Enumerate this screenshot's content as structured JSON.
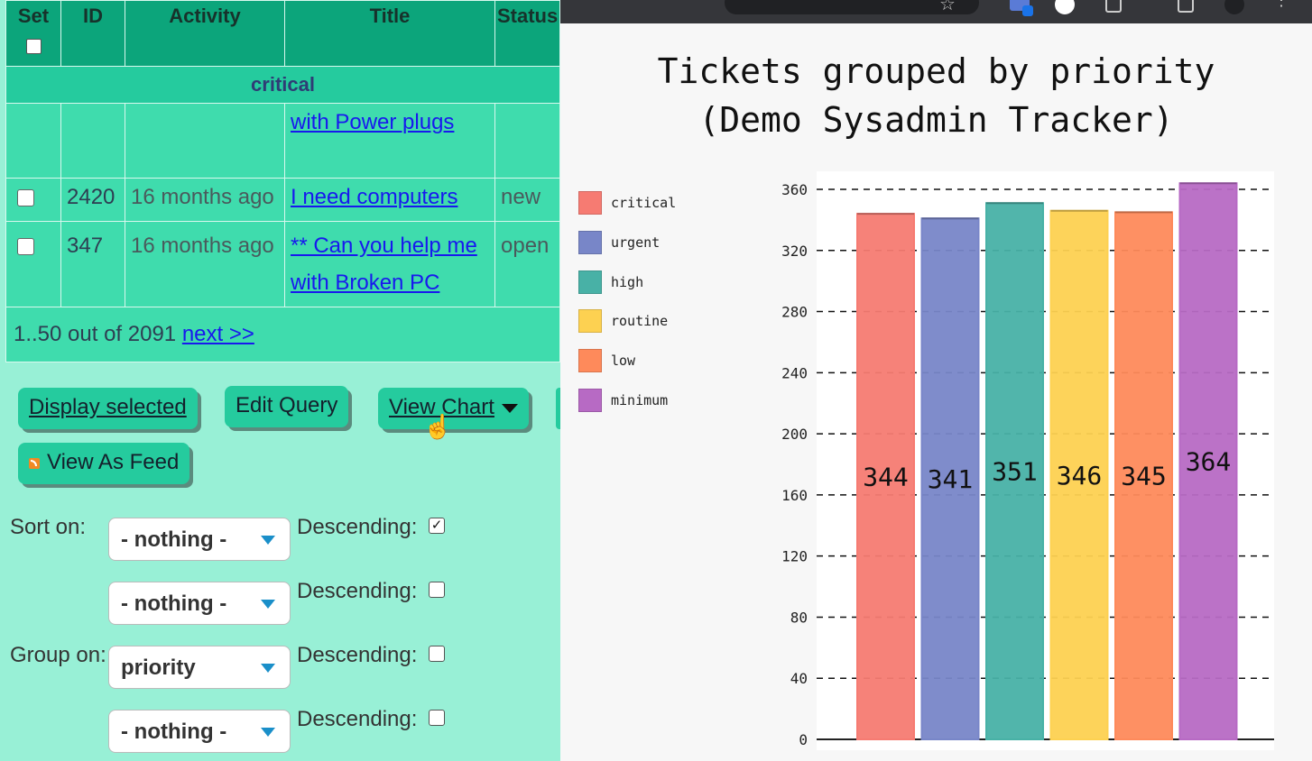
{
  "table": {
    "headers": {
      "set": "Set",
      "id": "ID",
      "activity": "Activity",
      "title": "Title",
      "status": "Status"
    },
    "group_label": "critical",
    "partial_row": {
      "title_tail": "with Power plugs"
    },
    "rows": [
      {
        "id": "2420",
        "activity": "16 months ago",
        "title": "I need computers",
        "status": "new"
      },
      {
        "id": "347",
        "activity": "16 months ago",
        "title_line1": "** Can you help me",
        "title_line2": "with Broken PC",
        "status": "open"
      }
    ],
    "pager": {
      "text": "1..50 out of 2091",
      "next_label": "next >>"
    }
  },
  "buttons": {
    "display_selected": "Display selected",
    "edit_query": "Edit Query",
    "view_chart": "View Chart",
    "view_as_feed": "View As Feed"
  },
  "sort": {
    "label": "Sort on:",
    "field1": "- nothing -",
    "field2": "- nothing -",
    "descending_label": "Descending:",
    "desc1_checked": true,
    "desc2_checked": false
  },
  "group": {
    "label": "Group on:",
    "field1": "priority",
    "field2": "- nothing -",
    "descending_label": "Descending:",
    "desc1_checked": false,
    "desc2_checked": false
  },
  "chart_data": {
    "type": "bar",
    "title_line1": "Tickets grouped by priority",
    "title_line2": "(Demo Sysadmin Tracker)",
    "categories": [
      "critical",
      "urgent",
      "high",
      "routine",
      "low",
      "minimum"
    ],
    "values": [
      344,
      341,
      351,
      346,
      345,
      364
    ],
    "colors": [
      "#f67b72",
      "#7886c8",
      "#48b1a6",
      "#fdd151",
      "#fe8a5b",
      "#b76ac4"
    ],
    "yticks": [
      "0",
      "40",
      "80",
      "120",
      "160",
      "200",
      "240",
      "280",
      "320",
      "360"
    ],
    "ylim": [
      0,
      360
    ],
    "grid": true,
    "legend_position": "left"
  }
}
